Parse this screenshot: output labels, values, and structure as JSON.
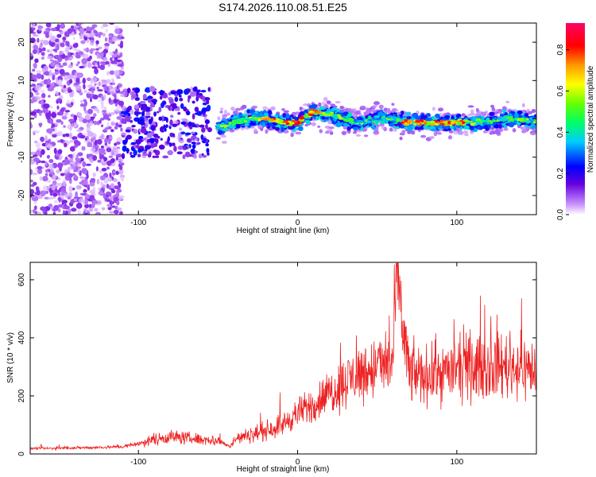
{
  "title": "S174.2026.110.08.51.E25",
  "chart_data": [
    {
      "type": "heatmap",
      "xlabel": "Height of straight line (km)",
      "ylabel": "Frequency (Hz)",
      "xlim": [
        -168,
        150
      ],
      "ylim": [
        -25,
        25
      ],
      "xticks": [
        -100,
        0,
        100
      ],
      "xtick_labels": [
        "-100",
        "0",
        "100"
      ],
      "yticks": [
        -20,
        -10,
        0,
        10,
        20
      ],
      "ytick_labels": [
        "-20",
        "-10",
        "0",
        "10",
        "20"
      ],
      "colorbar": {
        "label": "Normalized spectral amplitude",
        "range": [
          0.0,
          0.93
        ],
        "ticks": [
          0.0,
          0.2,
          0.4,
          0.6,
          0.8
        ],
        "tick_labels": [
          "0.0",
          "0.2",
          "0.4",
          "0.6",
          "0.8"
        ],
        "colormap": "rainbow (purple-blue-cyan-green-yellow-red-magenta)"
      },
      "features": [
        {
          "x_range": [
            -168,
            -110
          ],
          "description_values": {
            "freq_spread": [
              -25,
              25
            ],
            "amplitude": 0.05
          }
        },
        {
          "x_range": [
            -110,
            -55
          ],
          "description_values": {
            "freq_spread": [
              -10,
              8
            ],
            "amplitude": 0.1
          }
        },
        {
          "x_range": [
            -50,
            150
          ],
          "description_values": {
            "freq_band": [
              -5,
              5
            ],
            "center_freq": 0,
            "peak_amplitude": 0.85
          }
        }
      ],
      "ridge": {
        "x": [
          -50,
          -40,
          -30,
          -20,
          -10,
          0,
          10,
          20,
          30,
          40,
          50,
          60,
          70,
          80,
          90,
          100,
          110,
          120,
          130,
          140,
          150
        ],
        "y": [
          -2,
          -1,
          0,
          0,
          -1,
          -1,
          2,
          1,
          0,
          -1,
          0,
          0,
          -1,
          -1,
          -1,
          -1,
          -1,
          -1,
          0,
          0,
          -1
        ]
      },
      "grid": false
    },
    {
      "type": "line",
      "xlabel": "Height of straight line (km)",
      "ylabel": "SNR (10 * v/v)",
      "xlim": [
        -168,
        150
      ],
      "ylim": [
        0,
        660
      ],
      "xticks": [
        -100,
        0,
        100
      ],
      "xtick_labels": [
        "-100",
        "0",
        "100"
      ],
      "yticks": [
        0,
        200,
        400,
        600
      ],
      "ytick_labels": [
        "0",
        "200",
        "400",
        "600"
      ],
      "series": [
        {
          "color": "#ee2222",
          "x": [
            -168,
            -150,
            -130,
            -110,
            -100,
            -90,
            -80,
            -70,
            -60,
            -50,
            -42,
            -40,
            -30,
            -20,
            -10,
            0,
            10,
            20,
            30,
            40,
            50,
            60,
            62,
            70,
            80,
            90,
            100,
            110,
            120,
            130,
            140,
            150
          ],
          "y": [
            18,
            20,
            22,
            25,
            35,
            50,
            60,
            55,
            50,
            45,
            25,
            50,
            65,
            80,
            100,
            140,
            170,
            210,
            250,
            280,
            300,
            320,
            620,
            280,
            270,
            280,
            290,
            295,
            300,
            305,
            300,
            290
          ]
        }
      ],
      "grid": false
    }
  ]
}
